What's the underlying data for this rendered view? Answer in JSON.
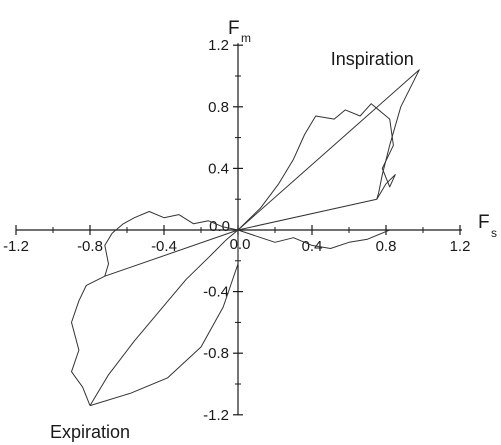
{
  "chart_data": {
    "type": "line",
    "title": "",
    "xlabel": {
      "main": "F",
      "sub": "s"
    },
    "ylabel": {
      "main": "F",
      "sub": "m"
    },
    "xlim": [
      -1.2,
      1.2
    ],
    "ylim": [
      -1.2,
      1.2
    ],
    "x_ticks": [
      -1.2,
      -0.8,
      -0.4,
      0.0,
      0.4,
      0.8,
      1.2
    ],
    "x_tick_labels": [
      "-1.2",
      "-0.8",
      "-0.4",
      "0.0",
      "0.4",
      "0.8",
      "1.2"
    ],
    "y_ticks": [
      -1.2,
      -0.8,
      -0.4,
      0.0,
      0.4,
      0.8,
      1.2
    ],
    "y_tick_labels": [
      "-1.2",
      "-0.8",
      "-0.4",
      "0.0",
      "0.4",
      "0.8",
      "1.2"
    ],
    "grid": false,
    "axes_through_origin": true,
    "line_color": "#333333",
    "annotations": [
      {
        "text": "Inspiration",
        "x": 0.95,
        "y": 1.07
      },
      {
        "text": "Expiration",
        "x": -0.8,
        "y": -1.35
      }
    ],
    "series": [
      {
        "values": [
          {
            "x": 0.0,
            "y": 0.0
          },
          {
            "x": 0.1,
            "y": -0.04
          },
          {
            "x": 0.2,
            "y": -0.08
          },
          {
            "x": 0.3,
            "y": -0.05
          },
          {
            "x": 0.4,
            "y": -0.1
          },
          {
            "x": 0.5,
            "y": -0.12
          },
          {
            "x": 0.6,
            "y": -0.08
          },
          {
            "x": 0.7,
            "y": -0.06
          },
          {
            "x": 0.78,
            "y": -0.02
          },
          {
            "x": 0.82,
            "y": 0.0
          }
        ]
      },
      {
        "values": [
          {
            "x": 0.0,
            "y": 0.0
          },
          {
            "x": 0.75,
            "y": 0.2
          },
          {
            "x": 0.8,
            "y": 0.3
          },
          {
            "x": 0.85,
            "y": 0.36
          },
          {
            "x": 0.82,
            "y": 0.28
          },
          {
            "x": 0.78,
            "y": 0.4
          },
          {
            "x": 0.84,
            "y": 0.55
          },
          {
            "x": 0.82,
            "y": 0.72
          },
          {
            "x": 0.72,
            "y": 0.82
          },
          {
            "x": 0.66,
            "y": 0.74
          },
          {
            "x": 0.58,
            "y": 0.78
          },
          {
            "x": 0.52,
            "y": 0.72
          },
          {
            "x": 0.42,
            "y": 0.74
          },
          {
            "x": 0.36,
            "y": 0.62
          },
          {
            "x": 0.3,
            "y": 0.46
          },
          {
            "x": 0.22,
            "y": 0.3
          },
          {
            "x": 0.12,
            "y": 0.14
          },
          {
            "x": 0.0,
            "y": 0.0
          }
        ]
      },
      {
        "values": [
          {
            "x": 0.0,
            "y": 0.0
          },
          {
            "x": 0.98,
            "y": 1.04
          },
          {
            "x": 0.88,
            "y": 0.8
          },
          {
            "x": 0.82,
            "y": 0.55
          },
          {
            "x": 0.78,
            "y": 0.36
          },
          {
            "x": 0.76,
            "y": 0.24
          },
          {
            "x": 0.75,
            "y": 0.2
          }
        ]
      },
      {
        "values": [
          {
            "x": 0.0,
            "y": 0.0
          },
          {
            "x": -0.08,
            "y": 0.02
          },
          {
            "x": -0.16,
            "y": 0.06
          },
          {
            "x": -0.24,
            "y": 0.04
          },
          {
            "x": -0.32,
            "y": 0.1
          },
          {
            "x": -0.4,
            "y": 0.08
          },
          {
            "x": -0.48,
            "y": 0.12
          },
          {
            "x": -0.56,
            "y": 0.08
          },
          {
            "x": -0.62,
            "y": 0.04
          },
          {
            "x": -0.68,
            "y": -0.02
          },
          {
            "x": -0.72,
            "y": -0.1
          },
          {
            "x": -0.7,
            "y": -0.22
          },
          {
            "x": -0.72,
            "y": -0.3
          }
        ]
      },
      {
        "values": [
          {
            "x": -0.72,
            "y": -0.3
          },
          {
            "x": -0.82,
            "y": -0.36
          },
          {
            "x": -0.86,
            "y": -0.46
          },
          {
            "x": -0.9,
            "y": -0.6
          },
          {
            "x": -0.86,
            "y": -0.78
          },
          {
            "x": -0.9,
            "y": -0.92
          },
          {
            "x": -0.84,
            "y": -1.02
          },
          {
            "x": -0.8,
            "y": -1.14
          }
        ]
      },
      {
        "values": [
          {
            "x": -0.8,
            "y": -1.14
          },
          {
            "x": -0.7,
            "y": -0.94
          },
          {
            "x": -0.56,
            "y": -0.72
          },
          {
            "x": -0.42,
            "y": -0.52
          },
          {
            "x": -0.28,
            "y": -0.32
          },
          {
            "x": -0.16,
            "y": -0.18
          },
          {
            "x": -0.06,
            "y": -0.06
          },
          {
            "x": 0.0,
            "y": 0.0
          }
        ]
      },
      {
        "values": [
          {
            "x": 0.0,
            "y": 0.0
          },
          {
            "x": -0.72,
            "y": -0.3
          }
        ]
      },
      {
        "values": [
          {
            "x": 0.0,
            "y": 0.0
          },
          {
            "x": 0.0,
            "y": -0.22
          },
          {
            "x": -0.08,
            "y": -0.5
          },
          {
            "x": -0.2,
            "y": -0.76
          },
          {
            "x": -0.38,
            "y": -0.96
          },
          {
            "x": -0.58,
            "y": -1.06
          },
          {
            "x": -0.8,
            "y": -1.14
          }
        ]
      }
    ]
  }
}
